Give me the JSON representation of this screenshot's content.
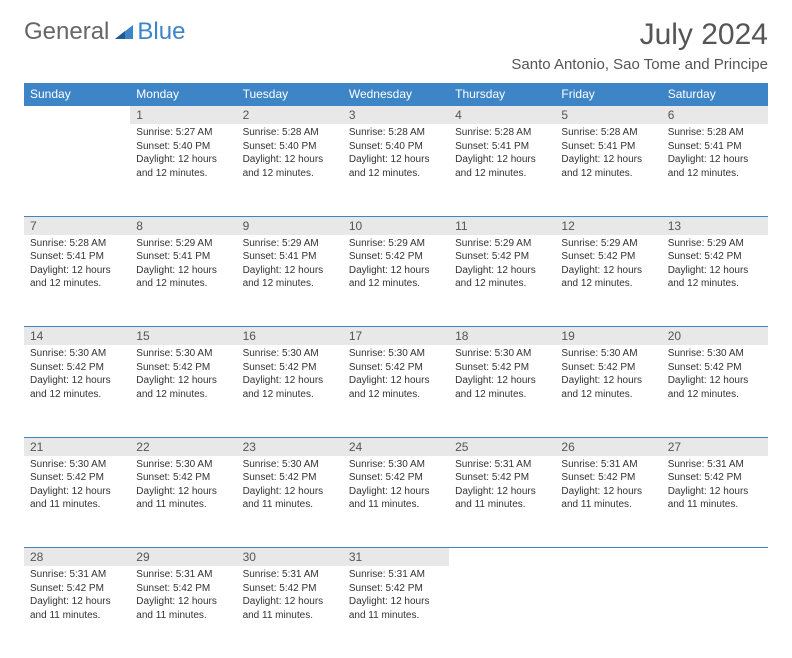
{
  "brand": {
    "word1": "General",
    "word2": "Blue"
  },
  "title": "July 2024",
  "location": "Santo Antonio, Sao Tome and Principe",
  "colors": {
    "header_bg": "#3d85c6",
    "header_text": "#ffffff",
    "daynum_bg": "#e8e8e8",
    "border": "#3d85c6",
    "body_bg": "#ffffff",
    "text": "#333333",
    "title_text": "#555555"
  },
  "weekdays": [
    "Sunday",
    "Monday",
    "Tuesday",
    "Wednesday",
    "Thursday",
    "Friday",
    "Saturday"
  ],
  "weeks": [
    {
      "days": [
        {
          "num": "",
          "sunrise": "",
          "sunset": "",
          "daylight": ""
        },
        {
          "num": "1",
          "sunrise": "Sunrise: 5:27 AM",
          "sunset": "Sunset: 5:40 PM",
          "daylight": "Daylight: 12 hours and 12 minutes."
        },
        {
          "num": "2",
          "sunrise": "Sunrise: 5:28 AM",
          "sunset": "Sunset: 5:40 PM",
          "daylight": "Daylight: 12 hours and 12 minutes."
        },
        {
          "num": "3",
          "sunrise": "Sunrise: 5:28 AM",
          "sunset": "Sunset: 5:40 PM",
          "daylight": "Daylight: 12 hours and 12 minutes."
        },
        {
          "num": "4",
          "sunrise": "Sunrise: 5:28 AM",
          "sunset": "Sunset: 5:41 PM",
          "daylight": "Daylight: 12 hours and 12 minutes."
        },
        {
          "num": "5",
          "sunrise": "Sunrise: 5:28 AM",
          "sunset": "Sunset: 5:41 PM",
          "daylight": "Daylight: 12 hours and 12 minutes."
        },
        {
          "num": "6",
          "sunrise": "Sunrise: 5:28 AM",
          "sunset": "Sunset: 5:41 PM",
          "daylight": "Daylight: 12 hours and 12 minutes."
        }
      ]
    },
    {
      "days": [
        {
          "num": "7",
          "sunrise": "Sunrise: 5:28 AM",
          "sunset": "Sunset: 5:41 PM",
          "daylight": "Daylight: 12 hours and 12 minutes."
        },
        {
          "num": "8",
          "sunrise": "Sunrise: 5:29 AM",
          "sunset": "Sunset: 5:41 PM",
          "daylight": "Daylight: 12 hours and 12 minutes."
        },
        {
          "num": "9",
          "sunrise": "Sunrise: 5:29 AM",
          "sunset": "Sunset: 5:41 PM",
          "daylight": "Daylight: 12 hours and 12 minutes."
        },
        {
          "num": "10",
          "sunrise": "Sunrise: 5:29 AM",
          "sunset": "Sunset: 5:42 PM",
          "daylight": "Daylight: 12 hours and 12 minutes."
        },
        {
          "num": "11",
          "sunrise": "Sunrise: 5:29 AM",
          "sunset": "Sunset: 5:42 PM",
          "daylight": "Daylight: 12 hours and 12 minutes."
        },
        {
          "num": "12",
          "sunrise": "Sunrise: 5:29 AM",
          "sunset": "Sunset: 5:42 PM",
          "daylight": "Daylight: 12 hours and 12 minutes."
        },
        {
          "num": "13",
          "sunrise": "Sunrise: 5:29 AM",
          "sunset": "Sunset: 5:42 PM",
          "daylight": "Daylight: 12 hours and 12 minutes."
        }
      ]
    },
    {
      "days": [
        {
          "num": "14",
          "sunrise": "Sunrise: 5:30 AM",
          "sunset": "Sunset: 5:42 PM",
          "daylight": "Daylight: 12 hours and 12 minutes."
        },
        {
          "num": "15",
          "sunrise": "Sunrise: 5:30 AM",
          "sunset": "Sunset: 5:42 PM",
          "daylight": "Daylight: 12 hours and 12 minutes."
        },
        {
          "num": "16",
          "sunrise": "Sunrise: 5:30 AM",
          "sunset": "Sunset: 5:42 PM",
          "daylight": "Daylight: 12 hours and 12 minutes."
        },
        {
          "num": "17",
          "sunrise": "Sunrise: 5:30 AM",
          "sunset": "Sunset: 5:42 PM",
          "daylight": "Daylight: 12 hours and 12 minutes."
        },
        {
          "num": "18",
          "sunrise": "Sunrise: 5:30 AM",
          "sunset": "Sunset: 5:42 PM",
          "daylight": "Daylight: 12 hours and 12 minutes."
        },
        {
          "num": "19",
          "sunrise": "Sunrise: 5:30 AM",
          "sunset": "Sunset: 5:42 PM",
          "daylight": "Daylight: 12 hours and 12 minutes."
        },
        {
          "num": "20",
          "sunrise": "Sunrise: 5:30 AM",
          "sunset": "Sunset: 5:42 PM",
          "daylight": "Daylight: 12 hours and 12 minutes."
        }
      ]
    },
    {
      "days": [
        {
          "num": "21",
          "sunrise": "Sunrise: 5:30 AM",
          "sunset": "Sunset: 5:42 PM",
          "daylight": "Daylight: 12 hours and 11 minutes."
        },
        {
          "num": "22",
          "sunrise": "Sunrise: 5:30 AM",
          "sunset": "Sunset: 5:42 PM",
          "daylight": "Daylight: 12 hours and 11 minutes."
        },
        {
          "num": "23",
          "sunrise": "Sunrise: 5:30 AM",
          "sunset": "Sunset: 5:42 PM",
          "daylight": "Daylight: 12 hours and 11 minutes."
        },
        {
          "num": "24",
          "sunrise": "Sunrise: 5:30 AM",
          "sunset": "Sunset: 5:42 PM",
          "daylight": "Daylight: 12 hours and 11 minutes."
        },
        {
          "num": "25",
          "sunrise": "Sunrise: 5:31 AM",
          "sunset": "Sunset: 5:42 PM",
          "daylight": "Daylight: 12 hours and 11 minutes."
        },
        {
          "num": "26",
          "sunrise": "Sunrise: 5:31 AM",
          "sunset": "Sunset: 5:42 PM",
          "daylight": "Daylight: 12 hours and 11 minutes."
        },
        {
          "num": "27",
          "sunrise": "Sunrise: 5:31 AM",
          "sunset": "Sunset: 5:42 PM",
          "daylight": "Daylight: 12 hours and 11 minutes."
        }
      ]
    },
    {
      "days": [
        {
          "num": "28",
          "sunrise": "Sunrise: 5:31 AM",
          "sunset": "Sunset: 5:42 PM",
          "daylight": "Daylight: 12 hours and 11 minutes."
        },
        {
          "num": "29",
          "sunrise": "Sunrise: 5:31 AM",
          "sunset": "Sunset: 5:42 PM",
          "daylight": "Daylight: 12 hours and 11 minutes."
        },
        {
          "num": "30",
          "sunrise": "Sunrise: 5:31 AM",
          "sunset": "Sunset: 5:42 PM",
          "daylight": "Daylight: 12 hours and 11 minutes."
        },
        {
          "num": "31",
          "sunrise": "Sunrise: 5:31 AM",
          "sunset": "Sunset: 5:42 PM",
          "daylight": "Daylight: 12 hours and 11 minutes."
        },
        {
          "num": "",
          "sunrise": "",
          "sunset": "",
          "daylight": ""
        },
        {
          "num": "",
          "sunrise": "",
          "sunset": "",
          "daylight": ""
        },
        {
          "num": "",
          "sunrise": "",
          "sunset": "",
          "daylight": ""
        }
      ]
    }
  ]
}
